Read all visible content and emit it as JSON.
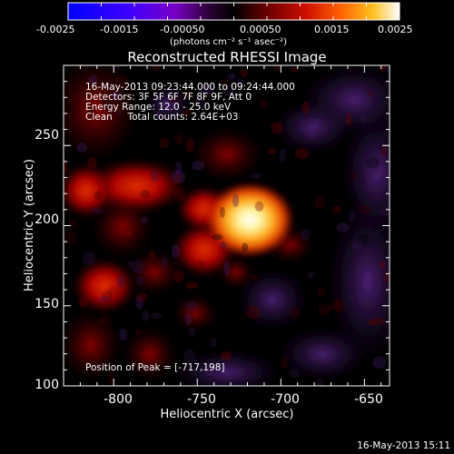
{
  "colorbar": {
    "tick_labels": [
      "-0.0025",
      "-0.0015",
      "-0.00050",
      "0.00050",
      "0.0015",
      "0.0025"
    ],
    "unit_label": "(photons cm⁻² s⁻¹ asec⁻²)",
    "colors": [
      "#0000ff",
      "#4a00ff",
      "#7a00c8",
      "#3c0044",
      "#000000",
      "#5a0000",
      "#b00000",
      "#ff3000",
      "#ff9000",
      "#ffd840",
      "#ffffff"
    ]
  },
  "title": "Reconstructed RHESSI Image",
  "info": {
    "time_range": "16-May-2013 09:23:44.000 to 09:24:44.000",
    "detectors": "Detectors: 3F 5F 6F 7F 8F 9F, Att 0",
    "energy": "Energy Range: 12.0 - 25.0 keV",
    "clean": "Clean     Total counts: 2.64E+03",
    "peak": "Position of Peak = [-717,198]"
  },
  "axes": {
    "xlabel": "Heliocentric X (arcsec)",
    "ylabel": "Heliocentric Y (arcsec)",
    "xticks": [
      "-800",
      "-750",
      "-700",
      "-650"
    ],
    "yticks": [
      "100",
      "150",
      "200",
      "250"
    ],
    "xlim": [
      -830,
      -635
    ],
    "ylim": [
      100,
      300
    ]
  },
  "footer": "16-May-2013 15:11"
}
